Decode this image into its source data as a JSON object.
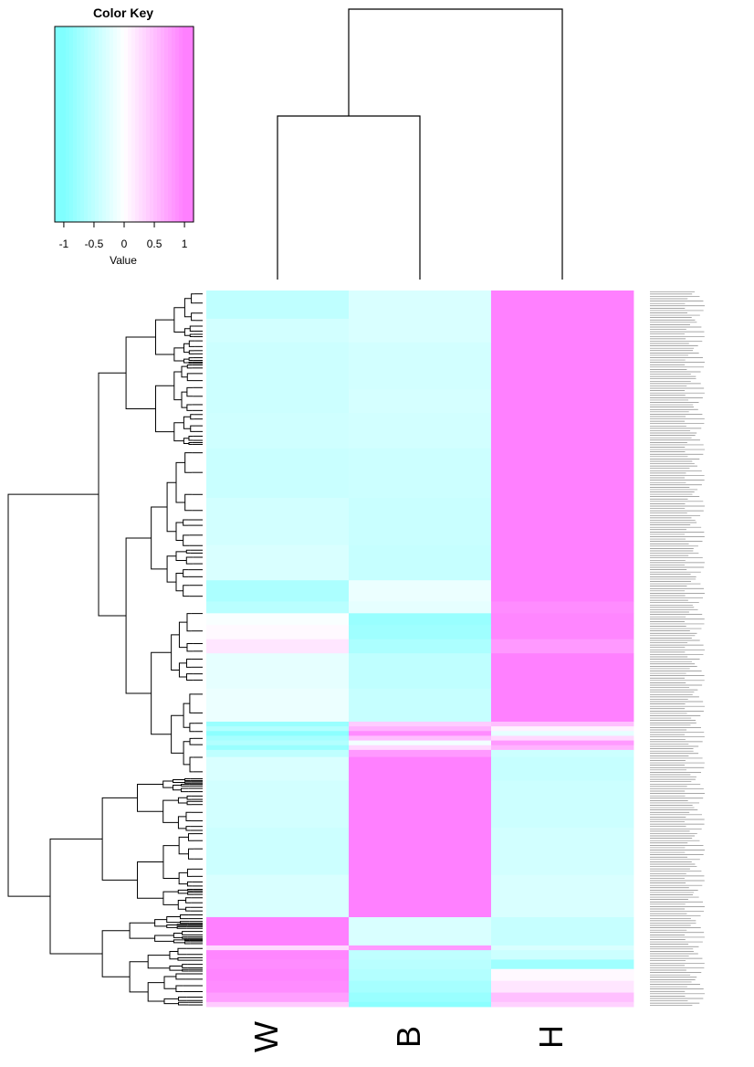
{
  "chart_data": {
    "type": "heatmap",
    "columns": [
      "W",
      "B",
      "H"
    ],
    "color_key": {
      "title": "Color Key",
      "xlabel": "Value",
      "ticks": [
        "-1",
        "-0.5",
        "0",
        "0.5",
        "1"
      ],
      "tick_values": [
        -1,
        -0.5,
        0,
        0.5,
        1
      ],
      "range": [
        -1.15,
        1.15
      ],
      "colors": {
        "low": "#00ffff",
        "mid": "#ffffff",
        "high": "#ff00ff"
      }
    },
    "row_dendrogram": true,
    "column_dendrogram": true,
    "row_labels_legible": false,
    "row_blocks": [
      {
        "rows": 24,
        "values": [
          -0.5,
          -0.3,
          1.0
        ]
      },
      {
        "rows": 20,
        "values": [
          -0.35,
          -0.3,
          1.0
        ]
      },
      {
        "rows": 40,
        "values": [
          -0.4,
          -0.35,
          1.0
        ]
      },
      {
        "rows": 20,
        "values": [
          -0.4,
          -0.33,
          1.0
        ]
      },
      {
        "rows": 30,
        "values": [
          -0.38,
          -0.35,
          1.0
        ]
      },
      {
        "rows": 42,
        "values": [
          -0.42,
          -0.4,
          1.0
        ]
      },
      {
        "rows": 40,
        "values": [
          -0.35,
          -0.42,
          1.0
        ]
      },
      {
        "rows": 30,
        "values": [
          -0.3,
          -0.45,
          1.0
        ]
      },
      {
        "rows": 18,
        "values": [
          -0.65,
          -0.15,
          1.0
        ]
      },
      {
        "rows": 10,
        "values": [
          -0.55,
          -0.2,
          0.9
        ]
      },
      {
        "rows": 10,
        "values": [
          -0.05,
          -0.8,
          0.95
        ]
      },
      {
        "rows": 12,
        "values": [
          0.05,
          -0.75,
          0.95
        ]
      },
      {
        "rows": 12,
        "values": [
          0.2,
          -0.65,
          0.8
        ]
      },
      {
        "rows": 30,
        "values": [
          -0.2,
          -0.5,
          1.0
        ]
      },
      {
        "rows": 28,
        "values": [
          -0.15,
          -0.45,
          1.0
        ]
      },
      {
        "rows": 4,
        "values": [
          -0.8,
          0.4,
          0.5
        ]
      },
      {
        "rows": 4,
        "values": [
          -0.6,
          0.6,
          0.1
        ]
      },
      {
        "rows": 4,
        "values": [
          -0.9,
          0.9,
          -0.2
        ]
      },
      {
        "rows": 4,
        "values": [
          -0.7,
          0.5,
          0.3
        ]
      },
      {
        "rows": 4,
        "values": [
          -0.6,
          -0.1,
          0.8
        ]
      },
      {
        "rows": 4,
        "values": [
          -0.8,
          0.3,
          0.6
        ]
      },
      {
        "rows": 6,
        "values": [
          -0.5,
          0.8,
          -0.4
        ]
      },
      {
        "rows": 20,
        "values": [
          -0.3,
          1.0,
          -0.45
        ]
      },
      {
        "rows": 40,
        "values": [
          -0.35,
          1.0,
          -0.4
        ]
      },
      {
        "rows": 40,
        "values": [
          -0.4,
          1.0,
          -0.35
        ]
      },
      {
        "rows": 36,
        "values": [
          -0.3,
          1.0,
          -0.3
        ]
      },
      {
        "rows": 24,
        "values": [
          1.0,
          -0.3,
          -0.45
        ]
      },
      {
        "rows": 4,
        "values": [
          0.3,
          0.8,
          -0.3
        ]
      },
      {
        "rows": 8,
        "values": [
          0.95,
          -0.5,
          -0.4
        ]
      },
      {
        "rows": 8,
        "values": [
          0.9,
          -0.55,
          -0.75
        ]
      },
      {
        "rows": 10,
        "values": [
          0.95,
          -0.6,
          0.05
        ]
      },
      {
        "rows": 10,
        "values": [
          0.9,
          -0.7,
          0.2
        ]
      },
      {
        "rows": 8,
        "values": [
          0.75,
          -0.8,
          0.5
        ]
      },
      {
        "rows": 4,
        "values": [
          0.4,
          -0.9,
          0.35
        ]
      }
    ]
  }
}
